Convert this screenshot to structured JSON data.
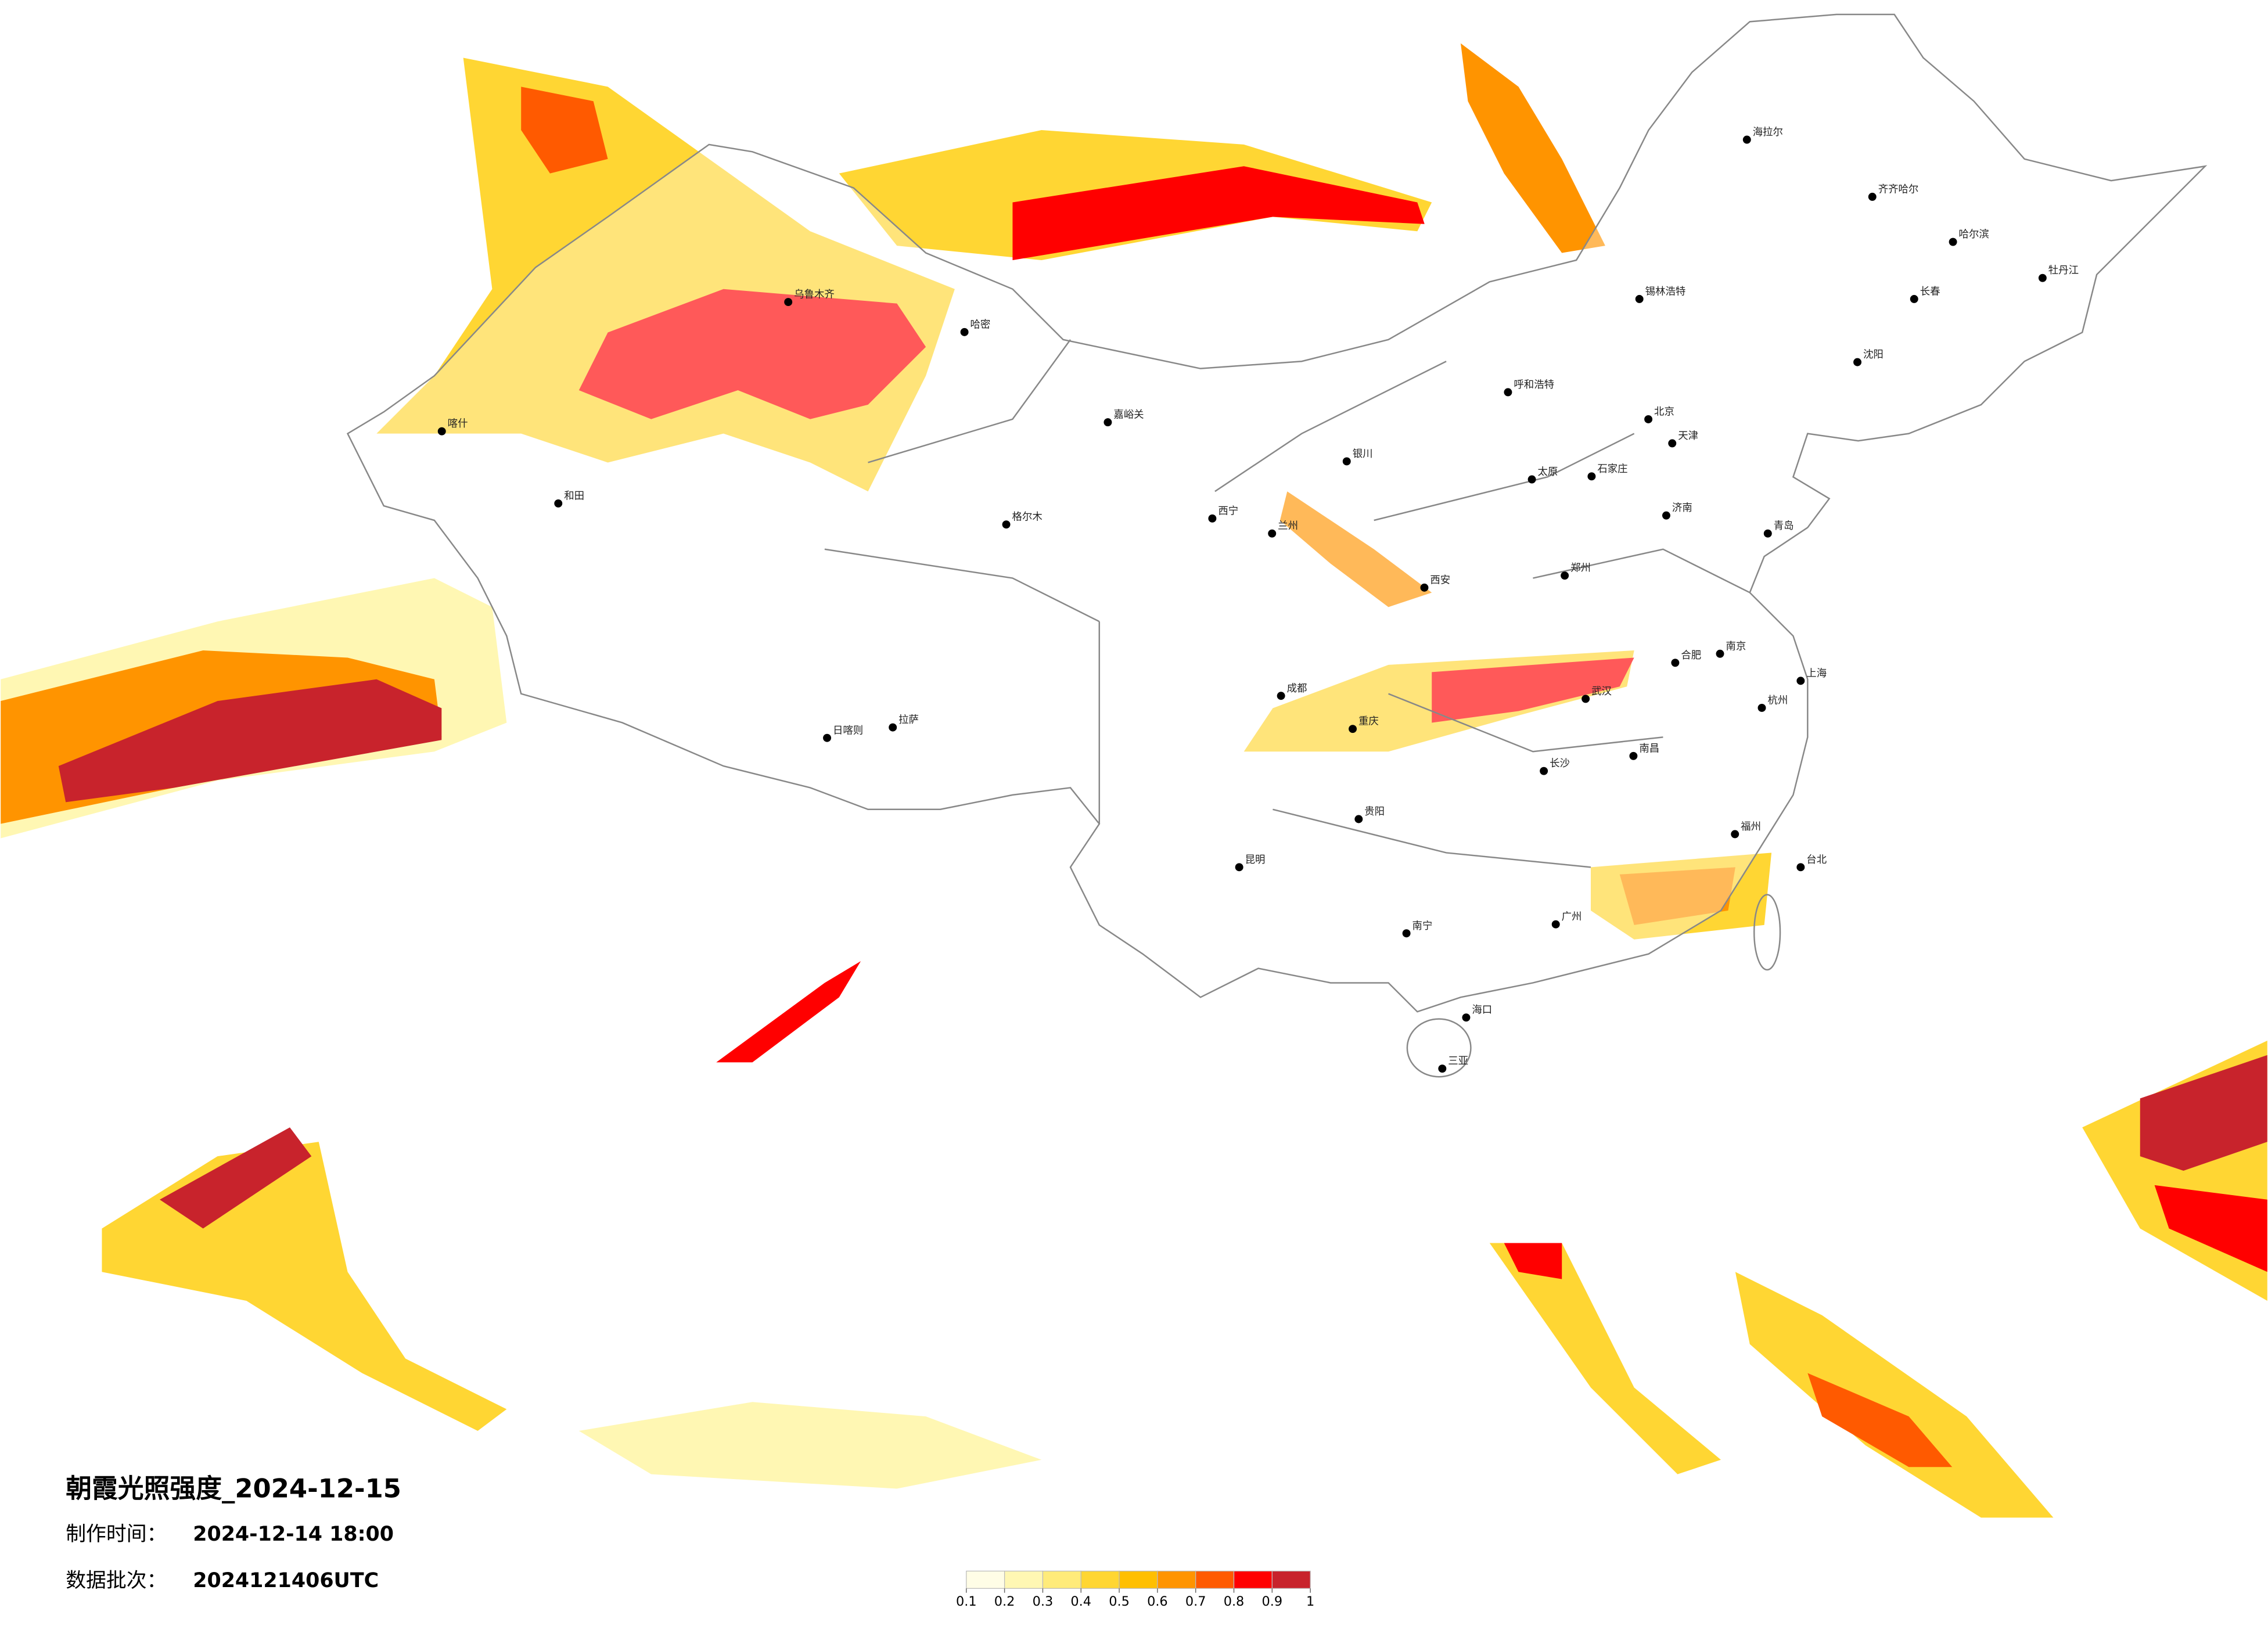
{
  "title": "朝霞光照强度_2024-12-15",
  "production_time": {
    "label": "制作时间：",
    "value": "2024-12-14 18:00"
  },
  "data_batch": {
    "label": "数据批次：",
    "value": "2024121406UTC"
  },
  "legend": {
    "ticks": [
      0.1,
      0.2,
      0.3,
      0.4,
      0.5,
      0.6,
      0.7,
      0.8,
      0.9,
      1
    ],
    "colors": [
      "#fffde6",
      "#fff7b3",
      "#ffeb7a",
      "#ffd633",
      "#ffbf00",
      "#ff9400",
      "#ff5a00",
      "#ff0000",
      "#c8232c"
    ]
  },
  "cities": [
    {
      "name": "北京",
      "lon": 116.4,
      "lat": 39.9
    },
    {
      "name": "天津",
      "lon": 117.2,
      "lat": 39.1
    },
    {
      "name": "石家庄",
      "lon": 114.5,
      "lat": 38.0
    },
    {
      "name": "太原",
      "lon": 112.5,
      "lat": 37.9
    },
    {
      "name": "呼和浩特",
      "lon": 111.7,
      "lat": 40.8
    },
    {
      "name": "沈阳",
      "lon": 123.4,
      "lat": 41.8
    },
    {
      "name": "长春",
      "lon": 125.3,
      "lat": 43.9
    },
    {
      "name": "哈尔滨",
      "lon": 126.6,
      "lat": 45.8
    },
    {
      "name": "齐齐哈尔",
      "lon": 123.9,
      "lat": 47.3
    },
    {
      "name": "海拉尔",
      "lon": 119.7,
      "lat": 49.2
    },
    {
      "name": "锡林浩特",
      "lon": 116.1,
      "lat": 43.9
    },
    {
      "name": "牡丹江",
      "lon": 129.6,
      "lat": 44.6
    },
    {
      "name": "济南",
      "lon": 117.0,
      "lat": 36.7
    },
    {
      "name": "青岛",
      "lon": 120.4,
      "lat": 36.1
    },
    {
      "name": "郑州",
      "lon": 113.6,
      "lat": 34.7
    },
    {
      "name": "西安",
      "lon": 108.9,
      "lat": 34.3
    },
    {
      "name": "兰州",
      "lon": 103.8,
      "lat": 36.1
    },
    {
      "name": "西宁",
      "lon": 101.8,
      "lat": 36.6
    },
    {
      "name": "银川",
      "lon": 106.3,
      "lat": 38.5
    },
    {
      "name": "乌鲁木齐",
      "lon": 87.6,
      "lat": 43.8
    },
    {
      "name": "喀什",
      "lon": 76.0,
      "lat": 39.5
    },
    {
      "name": "和田",
      "lon": 79.9,
      "lat": 37.1
    },
    {
      "name": "哈密",
      "lon": 93.5,
      "lat": 42.8
    },
    {
      "name": "嘉峪关",
      "lon": 98.3,
      "lat": 39.8
    },
    {
      "name": "格尔木",
      "lon": 94.9,
      "lat": 36.4
    },
    {
      "name": "拉萨",
      "lon": 91.1,
      "lat": 29.65
    },
    {
      "name": "日喀则",
      "lon": 88.9,
      "lat": 29.3
    },
    {
      "name": "成都",
      "lon": 104.1,
      "lat": 30.7
    },
    {
      "name": "重庆",
      "lon": 106.5,
      "lat": 29.6
    },
    {
      "name": "武汉",
      "lon": 114.3,
      "lat": 30.6
    },
    {
      "name": "南京",
      "lon": 118.8,
      "lat": 32.1
    },
    {
      "name": "上海",
      "lon": 121.5,
      "lat": 31.2
    },
    {
      "name": "杭州",
      "lon": 120.2,
      "lat": 30.3
    },
    {
      "name": "合肥",
      "lon": 117.3,
      "lat": 31.8
    },
    {
      "name": "长沙",
      "lon": 112.9,
      "lat": 28.2
    },
    {
      "name": "南昌",
      "lon": 115.9,
      "lat": 28.7
    },
    {
      "name": "福州",
      "lon": 119.3,
      "lat": 26.1
    },
    {
      "name": "广州",
      "lon": 113.3,
      "lat": 23.1
    },
    {
      "name": "南宁",
      "lon": 108.3,
      "lat": 22.8
    },
    {
      "name": "昆明",
      "lon": 102.7,
      "lat": 25.0
    },
    {
      "name": "贵阳",
      "lon": 106.7,
      "lat": 26.6
    },
    {
      "name": "海口",
      "lon": 110.3,
      "lat": 20.0
    },
    {
      "name": "台北",
      "lon": 121.5,
      "lat": 25.0
    },
    {
      "name": "三亚",
      "lon": 109.5,
      "lat": 18.3
    }
  ]
}
